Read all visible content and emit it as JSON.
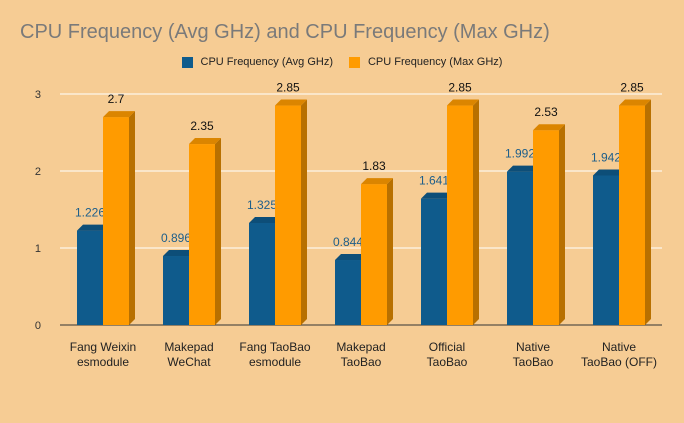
{
  "chart_data": {
    "type": "bar",
    "title": "CPU Frequency (Avg GHz) and CPU Frequency (Max GHz)",
    "categories": [
      [
        "Fang Weixin",
        "esmodule"
      ],
      [
        "Makepad",
        "WeChat"
      ],
      [
        "Fang TaoBao",
        "esmodule"
      ],
      [
        "Makepad",
        "TaoBao"
      ],
      [
        "Official",
        "TaoBao"
      ],
      [
        "Native",
        "TaoBao"
      ],
      [
        "Native",
        "TaoBao (OFF)"
      ]
    ],
    "series": [
      {
        "name": "CPU Frequency (Avg GHz)",
        "color": "#0f5b8c",
        "values": [
          1.226,
          0.896,
          1.325,
          0.844,
          1.641,
          1.992,
          1.942
        ],
        "labels": [
          "1.226",
          "0.896",
          "1.325",
          "0.844",
          "1.641",
          "1.992",
          "1.942"
        ]
      },
      {
        "name": "CPU Frequency (Max GHz)",
        "color": "#ff9b00",
        "values": [
          2.7,
          2.35,
          2.85,
          1.83,
          2.85,
          2.53,
          2.85
        ],
        "labels": [
          "2.7",
          "2.35",
          "2.85",
          "1.83",
          "2.85",
          "2.53",
          "2.85"
        ]
      }
    ],
    "ylim": [
      0,
      3
    ],
    "yticks": [
      "0",
      "1",
      "2",
      "3"
    ],
    "grid": true,
    "legend_position": "top",
    "three_d": true,
    "colors": {
      "background": "#f6cc94",
      "title": "#7a7a7a",
      "avg_label": "#1d5e8a",
      "max_label": "#111111"
    }
  }
}
